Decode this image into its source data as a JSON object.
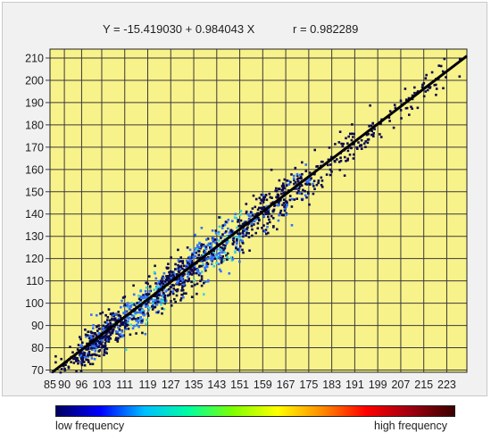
{
  "chart_data": {
    "type": "scatter",
    "equation_text": "Y = -15.419030 + 0.984043 X",
    "r_text": "r = 0.982289",
    "regression": {
      "intercept": -15.41903,
      "slope": 0.984043
    },
    "xlim": [
      85,
      230
    ],
    "ylim": [
      69,
      214
    ],
    "x_ticks": [
      "85",
      "90",
      "96",
      "103",
      "111",
      "119",
      "127",
      "135",
      "143",
      "151",
      "159",
      "167",
      "175",
      "183",
      "191",
      "199",
      "207",
      "215",
      "223"
    ],
    "y_ticks": [
      "70",
      "80",
      "90",
      "100",
      "110",
      "120",
      "130",
      "140",
      "150",
      "160",
      "170",
      "180",
      "190",
      "200",
      "210"
    ],
    "grid": true,
    "colorbar": {
      "low_label": "low frequency",
      "high_label": "high frequency",
      "colors": [
        "#000060",
        "#0000ff",
        "#00bfff",
        "#00ffa0",
        "#7fff00",
        "#ffff00",
        "#ff8c00",
        "#ff0000",
        "#a00010",
        "#3a0000"
      ]
    },
    "density_clusters": [
      {
        "x": 100,
        "y": 83,
        "sx": 5,
        "sy": 3.5,
        "n": 260
      },
      {
        "x": 118,
        "y": 100,
        "sx": 12,
        "sy": 4.5,
        "n": 520
      },
      {
        "x": 143,
        "y": 125,
        "sx": 14,
        "sy": 5,
        "n": 480
      },
      {
        "x": 168,
        "y": 150,
        "sx": 10,
        "sy": 4.5,
        "n": 180
      },
      {
        "x": 192,
        "y": 173,
        "sx": 12,
        "sy": 4.5,
        "n": 90
      },
      {
        "x": 215,
        "y": 196,
        "sx": 8,
        "sy": 4,
        "n": 40
      }
    ],
    "colors": {
      "plot_background": "#f8f28a",
      "grid": "#3a3a3a",
      "regression_line": "#000000",
      "low_density_point": "#0a0a50",
      "mid_density_point": "#2f72ff",
      "high_density_point": "#38d5d8"
    }
  }
}
